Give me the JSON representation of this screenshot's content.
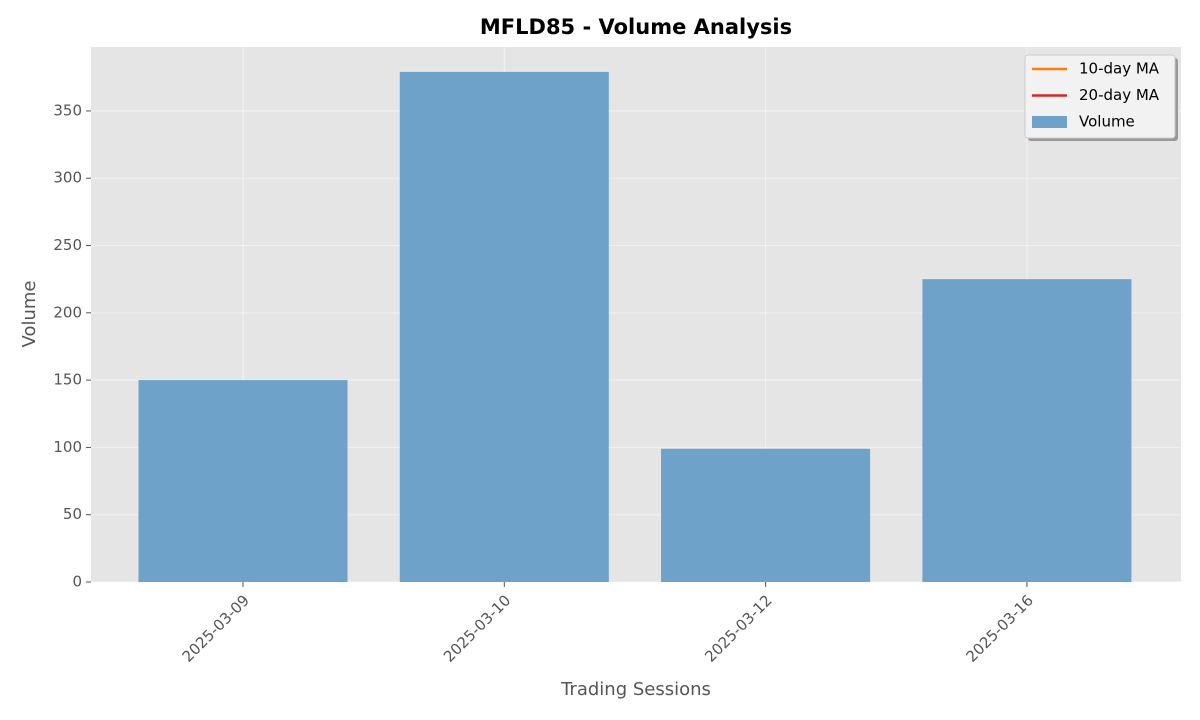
{
  "chart_data": {
    "type": "bar",
    "title": "MFLD85 - Volume Analysis",
    "xlabel": "Trading Sessions",
    "ylabel": "Volume",
    "categories": [
      "2025-03-09",
      "2025-03-10",
      "2025-03-12",
      "2025-03-16"
    ],
    "series": [
      {
        "name": "10-day MA",
        "type": "line",
        "color": "#ff7f0e",
        "values": [
          null,
          null,
          null,
          null
        ]
      },
      {
        "name": "20-day MA",
        "type": "line",
        "color": "#d62728",
        "values": [
          null,
          null,
          null,
          null
        ]
      },
      {
        "name": "Volume",
        "type": "bar",
        "color": "#6ea2c8",
        "values": [
          150,
          379,
          99,
          225
        ]
      }
    ],
    "ylim": [
      0,
      397.5
    ],
    "yticks": [
      0,
      50,
      100,
      150,
      200,
      250,
      300,
      350
    ],
    "grid": true,
    "legend": "upper right"
  }
}
